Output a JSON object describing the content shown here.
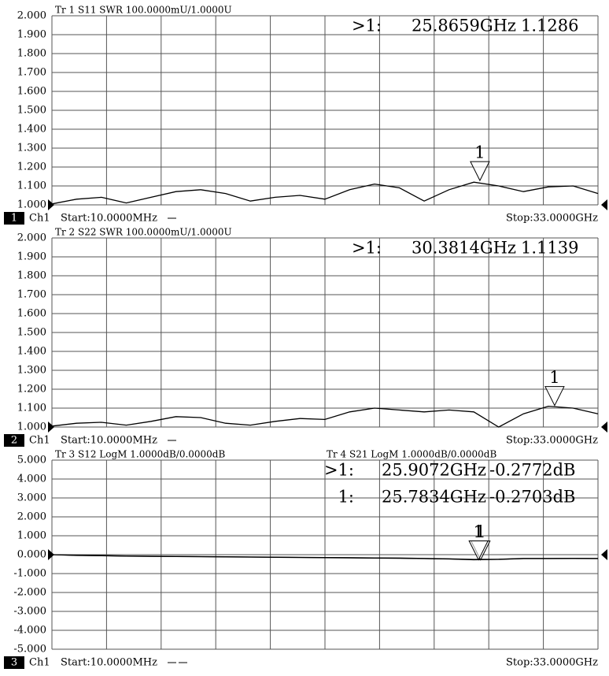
{
  "chart_data": [
    {
      "type": "line",
      "channel_badge": "1",
      "channel": "Ch1",
      "start_label": "Start:10.0000MHz",
      "stop_label": "Stop:33.0000GHz",
      "x": [
        0.01,
        1.5,
        3,
        4.5,
        6,
        7.5,
        9,
        10.5,
        12,
        13.5,
        15,
        16.5,
        18,
        19.5,
        21,
        22.5,
        24,
        25.5,
        27,
        28.5,
        30,
        31.5,
        33
      ],
      "xlim": [
        0.01,
        33
      ],
      "ylim": [
        1,
        2
      ],
      "yticks": [
        {
          "value": 1,
          "label": "1.000"
        },
        {
          "value": 1.1,
          "label": "1.100"
        },
        {
          "value": 1.2,
          "label": "1.200"
        },
        {
          "value": 1.3,
          "label": "1.300"
        },
        {
          "value": 1.4,
          "label": "1.400"
        },
        {
          "value": 1.5,
          "label": "1.500"
        },
        {
          "value": 1.6,
          "label": "1.600"
        },
        {
          "value": 1.7,
          "label": "1.700"
        },
        {
          "value": 1.8,
          "label": "1.800"
        },
        {
          "value": 1.9,
          "label": "1.900"
        },
        {
          "value": 2,
          "label": "2.000"
        }
      ],
      "grid": true,
      "series": [
        {
          "name": "Tr 1  S11 SWR 100.0000mU/1.0000U",
          "color": "#000000",
          "values": [
            1.005,
            1.03,
            1.04,
            1.01,
            1.04,
            1.07,
            1.08,
            1.06,
            1.02,
            1.04,
            1.05,
            1.03,
            1.08,
            1.11,
            1.09,
            1.02,
            1.08,
            1.12,
            1.1,
            1.07,
            1.095,
            1.1,
            1.06
          ]
        }
      ],
      "markers": [
        {
          "label": "1",
          "prefix": ">1:",
          "x": 25.8659,
          "x_label": "25.8659GHz",
          "value": 1.1286,
          "value_label": "1.1286"
        }
      ]
    },
    {
      "type": "line",
      "channel_badge": "2",
      "channel": "Ch1",
      "start_label": "Start:10.0000MHz",
      "stop_label": "Stop:33.0000GHz",
      "x": [
        0.01,
        1.5,
        3,
        4.5,
        6,
        7.5,
        9,
        10.5,
        12,
        13.5,
        15,
        16.5,
        18,
        19.5,
        21,
        22.5,
        24,
        25.5,
        27,
        28.5,
        30,
        31.5,
        33
      ],
      "xlim": [
        0.01,
        33
      ],
      "ylim": [
        1,
        2
      ],
      "yticks": [
        {
          "value": 1,
          "label": "1.000"
        },
        {
          "value": 1.1,
          "label": "1.100"
        },
        {
          "value": 1.2,
          "label": "1.200"
        },
        {
          "value": 1.3,
          "label": "1.300"
        },
        {
          "value": 1.4,
          "label": "1.400"
        },
        {
          "value": 1.5,
          "label": "1.500"
        },
        {
          "value": 1.6,
          "label": "1.600"
        },
        {
          "value": 1.7,
          "label": "1.700"
        },
        {
          "value": 1.8,
          "label": "1.800"
        },
        {
          "value": 1.9,
          "label": "1.900"
        },
        {
          "value": 2,
          "label": "2.000"
        }
      ],
      "grid": true,
      "series": [
        {
          "name": "Tr 2  S22 SWR 100.0000mU/1.0000U",
          "color": "#000000",
          "values": [
            1.005,
            1.02,
            1.025,
            1.01,
            1.03,
            1.055,
            1.05,
            1.02,
            1.01,
            1.03,
            1.045,
            1.04,
            1.08,
            1.1,
            1.09,
            1.08,
            1.09,
            1.08,
            1.0,
            1.07,
            1.11,
            1.1,
            1.07
          ]
        }
      ],
      "markers": [
        {
          "label": "1",
          "prefix": ">1:",
          "x": 30.3814,
          "x_label": "30.3814GHz",
          "value": 1.1139,
          "value_label": "1.1139"
        }
      ]
    },
    {
      "type": "line",
      "channel_badge": "3",
      "channel": "Ch1",
      "start_label": "Start:10.0000MHz",
      "stop_label": "Stop:33.0000GHz",
      "x": [
        0.01,
        1.5,
        3,
        4.5,
        6,
        7.5,
        9,
        10.5,
        12,
        13.5,
        15,
        16.5,
        18,
        19.5,
        21,
        22.5,
        24,
        25.5,
        27,
        28.5,
        30,
        31.5,
        33
      ],
      "xlim": [
        0.01,
        33
      ],
      "ylim": [
        -5,
        5
      ],
      "yticks": [
        {
          "value": -5,
          "label": "-5.000"
        },
        {
          "value": -4,
          "label": "-4.000"
        },
        {
          "value": -3,
          "label": "-3.000"
        },
        {
          "value": -2,
          "label": "-2.000"
        },
        {
          "value": -1,
          "label": "-1.000"
        },
        {
          "value": 0,
          "label": "0.000"
        },
        {
          "value": 1,
          "label": "1.000"
        },
        {
          "value": 2,
          "label": "2.000"
        },
        {
          "value": 3,
          "label": "3.000"
        },
        {
          "value": 4,
          "label": "4.000"
        },
        {
          "value": 5,
          "label": "5.000"
        }
      ],
      "grid": true,
      "series": [
        {
          "name": "Tr 3  S12 LogM 1.0000dB/0.0000dB",
          "color": "#000000",
          "values": [
            0,
            -0.03,
            -0.05,
            -0.07,
            -0.08,
            -0.09,
            -0.1,
            -0.11,
            -0.12,
            -0.13,
            -0.14,
            -0.15,
            -0.16,
            -0.17,
            -0.18,
            -0.2,
            -0.22,
            -0.25,
            -0.24,
            -0.2,
            -0.2,
            -0.19,
            -0.2
          ]
        },
        {
          "name": "Tr 4  S21 LogM 1.0000dB/0.0000dB",
          "color": "#000000",
          "values": [
            0,
            -0.04,
            -0.06,
            -0.08,
            -0.09,
            -0.1,
            -0.11,
            -0.12,
            -0.13,
            -0.14,
            -0.15,
            -0.16,
            -0.17,
            -0.18,
            -0.19,
            -0.21,
            -0.23,
            -0.27,
            -0.25,
            -0.21,
            -0.21,
            -0.2,
            -0.21
          ]
        }
      ],
      "markers": [
        {
          "label": "1",
          "prefix": ">1:",
          "x": 25.9072,
          "x_label": "25.9072GHz",
          "value": -0.2772,
          "value_label": "-0.2772dB"
        },
        {
          "label": "1",
          "prefix": "1:",
          "x": 25.7834,
          "x_label": "25.7834GHz",
          "value": -0.2703,
          "value_label": "-0.2703dB"
        }
      ]
    }
  ]
}
